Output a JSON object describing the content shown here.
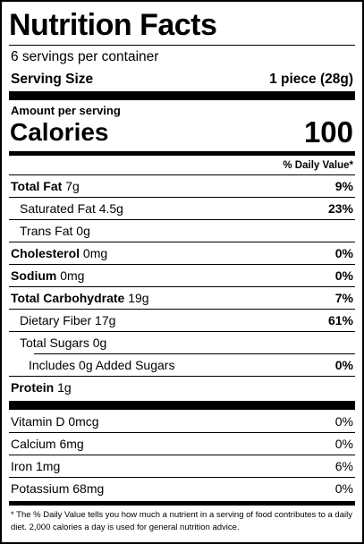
{
  "label": {
    "title": "Nutrition Facts",
    "servings": "6 servings per container",
    "serving_size_label": "Serving Size",
    "serving_size_value": "1 piece (28g)",
    "amount_per_serving": "Amount per serving",
    "calories_label": "Calories",
    "calories_value": "100",
    "daily_value_header": "% Daily Value*",
    "nutrients": [
      {
        "name": "Total Fat",
        "amount": "7g",
        "dv": "9%"
      },
      {
        "name": "Saturated Fat",
        "amount": "4.5g",
        "dv": "23%"
      },
      {
        "name": "Trans Fat",
        "amount": "0g",
        "dv": ""
      },
      {
        "name": "Cholesterol",
        "amount": "0mg",
        "dv": "0%"
      },
      {
        "name": "Sodium",
        "amount": "0mg",
        "dv": "0%"
      },
      {
        "name": "Total Carbohydrate",
        "amount": "19g",
        "dv": "7%"
      },
      {
        "name": "Dietary Fiber",
        "amount": "17g",
        "dv": "61%"
      },
      {
        "name": "Total Sugars",
        "amount": "0g",
        "dv": ""
      },
      {
        "name": "Includes 0g Added Sugars",
        "amount": "",
        "dv": "0%"
      },
      {
        "name": "Protein",
        "amount": "1g",
        "dv": ""
      }
    ],
    "vitamins": [
      {
        "name": "Vitamin D",
        "amount": "0mcg",
        "dv": "0%"
      },
      {
        "name": "Calcium",
        "amount": "6mg",
        "dv": "0%"
      },
      {
        "name": "Iron",
        "amount": "1mg",
        "dv": "6%"
      },
      {
        "name": "Potassium",
        "amount": "68mg",
        "dv": "0%"
      }
    ],
    "footnote": "* The % Daily Value tells you how much a nutrient in a serving of food contributes to a daily diet. 2,000 calories a day is used for general nutrition advice."
  }
}
